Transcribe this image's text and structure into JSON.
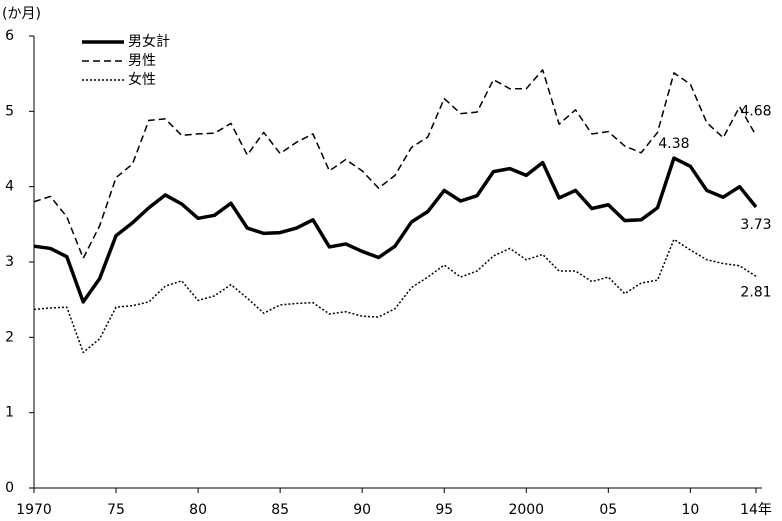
{
  "chart_data": {
    "type": "line",
    "ylabel": "(か月)",
    "x": [
      1970,
      1971,
      1972,
      1973,
      1974,
      1975,
      1976,
      1977,
      1978,
      1979,
      1980,
      1981,
      1982,
      1983,
      1984,
      1985,
      1986,
      1987,
      1988,
      1989,
      1990,
      1991,
      1992,
      1993,
      1994,
      1995,
      1996,
      1997,
      1998,
      1999,
      2000,
      2001,
      2002,
      2003,
      2004,
      2005,
      2006,
      2007,
      2008,
      2009,
      2010,
      2011,
      2012,
      2013,
      2014
    ],
    "series": [
      {
        "name": "男女計",
        "color": "#000000",
        "style": "solid",
        "values": [
          3.21,
          3.18,
          3.07,
          2.47,
          2.78,
          3.35,
          3.52,
          3.72,
          3.89,
          3.77,
          3.58,
          3.62,
          3.78,
          3.45,
          3.38,
          3.39,
          3.45,
          3.56,
          3.2,
          3.24,
          3.14,
          3.06,
          3.21,
          3.53,
          3.67,
          3.95,
          3.81,
          3.88,
          4.2,
          4.24,
          4.15,
          4.32,
          3.85,
          3.95,
          3.71,
          3.76,
          3.55,
          3.56,
          3.72,
          4.38,
          4.27,
          3.95,
          3.86,
          4.0,
          3.73
        ]
      },
      {
        "name": "男性",
        "color": "#000000",
        "style": "dashed",
        "values": [
          3.8,
          3.87,
          3.6,
          3.05,
          3.48,
          4.12,
          4.3,
          4.88,
          4.9,
          4.68,
          4.7,
          4.71,
          4.84,
          4.42,
          4.72,
          4.44,
          4.59,
          4.7,
          4.21,
          4.36,
          4.21,
          3.98,
          4.15,
          4.52,
          4.66,
          5.17,
          4.97,
          4.99,
          5.42,
          5.3,
          5.3,
          5.55,
          4.83,
          5.02,
          4.7,
          4.73,
          4.54,
          4.45,
          4.72,
          5.51,
          5.36,
          4.85,
          4.65,
          5.06,
          4.68
        ]
      },
      {
        "name": "女性",
        "color": "#000000",
        "style": "dotted",
        "values": [
          2.37,
          2.39,
          2.4,
          1.8,
          1.98,
          2.4,
          2.42,
          2.47,
          2.68,
          2.75,
          2.49,
          2.55,
          2.7,
          2.52,
          2.32,
          2.43,
          2.45,
          2.46,
          2.31,
          2.34,
          2.28,
          2.27,
          2.38,
          2.66,
          2.8,
          2.96,
          2.8,
          2.88,
          3.08,
          3.18,
          3.03,
          3.1,
          2.88,
          2.88,
          2.74,
          2.8,
          2.58,
          2.72,
          2.76,
          3.3,
          3.16,
          3.03,
          2.98,
          2.95,
          2.81
        ]
      }
    ],
    "xlim": [
      1970,
      2014
    ],
    "xticks": [
      1970,
      {
        "value": 1975,
        "label": "75"
      },
      {
        "value": 1980,
        "label": "80"
      },
      {
        "value": 1985,
        "label": "85"
      },
      {
        "value": 1990,
        "label": "90"
      },
      {
        "value": 1995,
        "label": "95"
      },
      2000,
      {
        "value": 2005,
        "label": "05"
      },
      {
        "value": 2010,
        "label": "10"
      },
      {
        "value": 2014,
        "label": "14年"
      }
    ],
    "ylim": [
      0,
      6
    ],
    "yticks": [
      0,
      1,
      2,
      3,
      4,
      5,
      6
    ],
    "grid": false,
    "legend": "upper left"
  }
}
